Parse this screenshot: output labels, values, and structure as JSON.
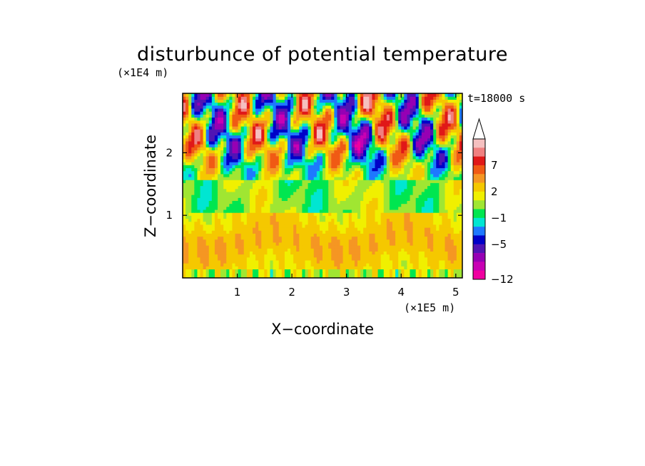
{
  "chart_data": {
    "type": "heatmap",
    "title": "disturbunce of potential temperature",
    "xlabel": "X−coordinate",
    "ylabel": "Z−coordinate",
    "x_unit": "(×1E5 m)",
    "y_unit": "(×1E4 m)",
    "time_label": "t=18000 s",
    "x_ticks": [
      {
        "value": 1,
        "label": "1"
      },
      {
        "value": 2,
        "label": "2"
      },
      {
        "value": 3,
        "label": "3"
      },
      {
        "value": 4,
        "label": "4"
      },
      {
        "value": 5,
        "label": "5"
      }
    ],
    "y_ticks": [
      {
        "value": 1,
        "label": "1"
      },
      {
        "value": 2,
        "label": "2"
      }
    ],
    "xlim": [
      0,
      5.12
    ],
    "ylim": [
      0,
      2.95
    ],
    "colorbar": {
      "tick_labels": [
        {
          "value": 7,
          "label": "7"
        },
        {
          "value": 2,
          "label": "2"
        },
        {
          "value": -1,
          "label": "−1"
        },
        {
          "value": -5,
          "label": "−5"
        },
        {
          "value": -12,
          "label": "−12"
        }
      ],
      "levels_top_to_bottom": [
        10,
        8.5,
        7,
        5,
        3.5,
        2,
        1,
        0,
        -1,
        -2,
        -3.5,
        -5,
        -7,
        -9,
        -10.5,
        -12
      ],
      "colors_top_to_bottom": [
        "#f5c0c0",
        "#f08080",
        "#e01818",
        "#f05a14",
        "#f59623",
        "#f5c800",
        "#f0f000",
        "#a0e632",
        "#00e650",
        "#00e6d2",
        "#1e78ff",
        "#0000c8",
        "#5014b4",
        "#9600b4",
        "#c800b4",
        "#f000a0"
      ],
      "extend_top_color": "#ffffff"
    }
  }
}
